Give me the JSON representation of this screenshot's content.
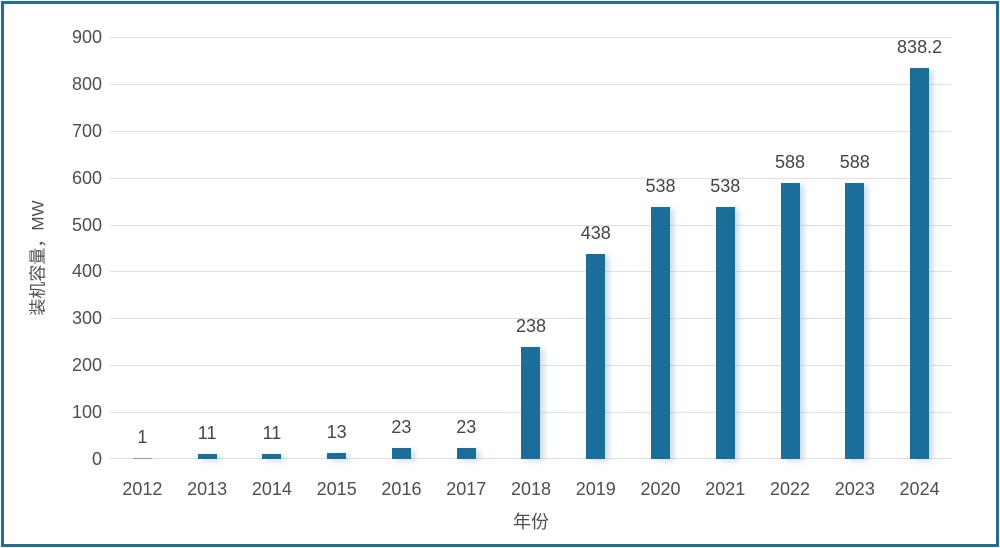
{
  "chart_data": {
    "type": "bar",
    "title": "",
    "xlabel": "年份",
    "ylabel": "装机容量，MW",
    "categories": [
      "2012",
      "2013",
      "2014",
      "2015",
      "2016",
      "2017",
      "2018",
      "2019",
      "2020",
      "2021",
      "2022",
      "2023",
      "2024"
    ],
    "values": [
      1,
      11,
      11,
      13,
      23,
      23,
      238,
      438,
      538,
      538,
      588,
      588,
      838.2
    ],
    "data_labels": [
      "1",
      "11",
      "11",
      "13",
      "23",
      "23",
      "238",
      "438",
      "538",
      "538",
      "588",
      "588",
      "838.2"
    ],
    "yticks": [
      0,
      100,
      200,
      300,
      400,
      500,
      600,
      700,
      800,
      900
    ],
    "ylim": [
      0,
      900
    ],
    "grid": true,
    "legend_position": "none"
  },
  "colors": {
    "bar": "#1a6e99",
    "frame_border": "#1f7092",
    "gridline": "#e0e0e0",
    "tick_text": "#4f4f4f",
    "label_text": "#454545",
    "background": "#ffffff"
  }
}
